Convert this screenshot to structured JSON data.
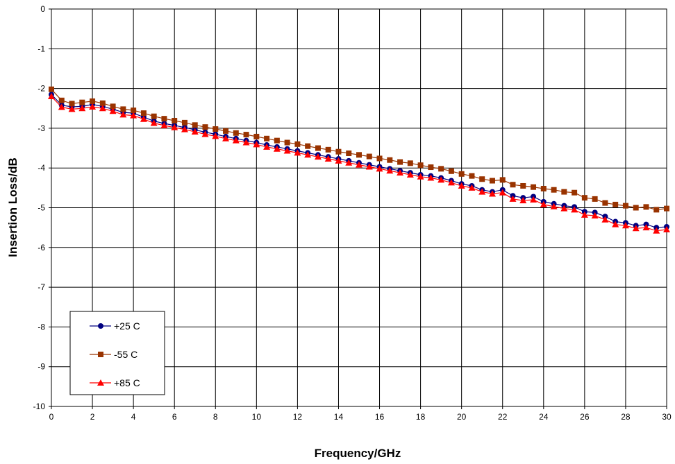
{
  "chart_data": {
    "type": "scatter",
    "title": "",
    "xlabel": "Frequency/GHz",
    "ylabel": "Insertion Loss/dB",
    "xlim": [
      0,
      30
    ],
    "ylim": [
      -10,
      0
    ],
    "xticks": [
      0,
      2,
      4,
      6,
      8,
      10,
      12,
      14,
      16,
      18,
      20,
      22,
      24,
      26,
      28,
      30
    ],
    "yticks": [
      0,
      -1,
      -2,
      -3,
      -4,
      -5,
      -6,
      -7,
      -8,
      -9,
      -10
    ],
    "grid": true,
    "legend_position": "bottom-left",
    "series": [
      {
        "name": "+25 C",
        "color": "#000080",
        "marker": "circle",
        "x": [
          0,
          0.5,
          1,
          1.5,
          2,
          2.5,
          3,
          3.5,
          4,
          4.5,
          5,
          5.5,
          6,
          6.5,
          7,
          7.5,
          8,
          8.5,
          9,
          9.5,
          10,
          10.5,
          11,
          11.5,
          12,
          12.5,
          13,
          13.5,
          14,
          14.5,
          15,
          15.5,
          16,
          16.5,
          17,
          17.5,
          18,
          18.5,
          19,
          19.5,
          20,
          20.5,
          21,
          21.5,
          22,
          22.5,
          23,
          23.5,
          24,
          24.5,
          25,
          25.5,
          26,
          26.5,
          27,
          27.5,
          28,
          28.5,
          29,
          29.5,
          30
        ],
        "y": [
          -2.15,
          -2.42,
          -2.46,
          -2.45,
          -2.4,
          -2.45,
          -2.52,
          -2.6,
          -2.62,
          -2.72,
          -2.82,
          -2.88,
          -2.93,
          -2.98,
          -3.04,
          -3.1,
          -3.15,
          -3.21,
          -3.26,
          -3.31,
          -3.36,
          -3.42,
          -3.47,
          -3.52,
          -3.57,
          -3.62,
          -3.67,
          -3.72,
          -3.77,
          -3.82,
          -3.87,
          -3.92,
          -3.97,
          -4.02,
          -4.07,
          -4.12,
          -4.17,
          -4.2,
          -4.25,
          -4.32,
          -4.4,
          -4.45,
          -4.55,
          -4.6,
          -4.55,
          -4.7,
          -4.75,
          -4.72,
          -4.85,
          -4.9,
          -4.95,
          -4.98,
          -5.1,
          -5.12,
          -5.22,
          -5.35,
          -5.38,
          -5.45,
          -5.42,
          -5.5,
          -5.48
        ]
      },
      {
        "name": "-55 C",
        "color": "#993300",
        "marker": "square",
        "x": [
          0,
          0.5,
          1,
          1.5,
          2,
          2.5,
          3,
          3.5,
          4,
          4.5,
          5,
          5.5,
          6,
          6.5,
          7,
          7.5,
          8,
          8.5,
          9,
          9.5,
          10,
          10.5,
          11,
          11.5,
          12,
          12.5,
          13,
          13.5,
          14,
          14.5,
          15,
          15.5,
          16,
          16.5,
          17,
          17.5,
          18,
          18.5,
          19,
          19.5,
          20,
          20.5,
          21,
          21.5,
          22,
          22.5,
          23,
          23.5,
          24,
          24.5,
          25,
          25.5,
          26,
          26.5,
          27,
          27.5,
          28,
          28.5,
          29,
          29.5,
          30
        ],
        "y": [
          -2.02,
          -2.3,
          -2.38,
          -2.35,
          -2.32,
          -2.37,
          -2.45,
          -2.52,
          -2.55,
          -2.62,
          -2.7,
          -2.76,
          -2.81,
          -2.86,
          -2.92,
          -2.97,
          -3.02,
          -3.07,
          -3.12,
          -3.16,
          -3.21,
          -3.26,
          -3.31,
          -3.36,
          -3.4,
          -3.45,
          -3.5,
          -3.54,
          -3.59,
          -3.63,
          -3.67,
          -3.71,
          -3.76,
          -3.8,
          -3.85,
          -3.88,
          -3.93,
          -3.98,
          -4.02,
          -4.08,
          -4.15,
          -4.2,
          -4.28,
          -4.32,
          -4.3,
          -4.42,
          -4.45,
          -4.48,
          -4.52,
          -4.55,
          -4.6,
          -4.62,
          -4.75,
          -4.78,
          -4.88,
          -4.92,
          -4.95,
          -5.0,
          -4.98,
          -5.05,
          -5.02
        ]
      },
      {
        "name": "+85 C",
        "color": "#ff0000",
        "marker": "triangle",
        "x": [
          0,
          0.5,
          1,
          1.5,
          2,
          2.5,
          3,
          3.5,
          4,
          4.5,
          5,
          5.5,
          6,
          6.5,
          7,
          7.5,
          8,
          8.5,
          9,
          9.5,
          10,
          10.5,
          11,
          11.5,
          12,
          12.5,
          13,
          13.5,
          14,
          14.5,
          15,
          15.5,
          16,
          16.5,
          17,
          17.5,
          18,
          18.5,
          19,
          19.5,
          20,
          20.5,
          21,
          21.5,
          22,
          22.5,
          23,
          23.5,
          24,
          24.5,
          25,
          25.5,
          26,
          26.5,
          27,
          27.5,
          28,
          28.5,
          29,
          29.5,
          30
        ],
        "y": [
          -2.2,
          -2.47,
          -2.52,
          -2.5,
          -2.46,
          -2.5,
          -2.57,
          -2.66,
          -2.68,
          -2.77,
          -2.87,
          -2.93,
          -2.98,
          -3.03,
          -3.09,
          -3.15,
          -3.2,
          -3.26,
          -3.31,
          -3.36,
          -3.41,
          -3.47,
          -3.52,
          -3.57,
          -3.62,
          -3.67,
          -3.72,
          -3.77,
          -3.82,
          -3.87,
          -3.92,
          -3.97,
          -4.02,
          -4.07,
          -4.12,
          -4.17,
          -4.22,
          -4.25,
          -4.3,
          -4.37,
          -4.45,
          -4.5,
          -4.6,
          -4.65,
          -4.62,
          -4.78,
          -4.82,
          -4.8,
          -4.92,
          -4.97,
          -5.02,
          -5.05,
          -5.18,
          -5.2,
          -5.3,
          -5.42,
          -5.45,
          -5.52,
          -5.5,
          -5.58,
          -5.55
        ]
      }
    ]
  }
}
